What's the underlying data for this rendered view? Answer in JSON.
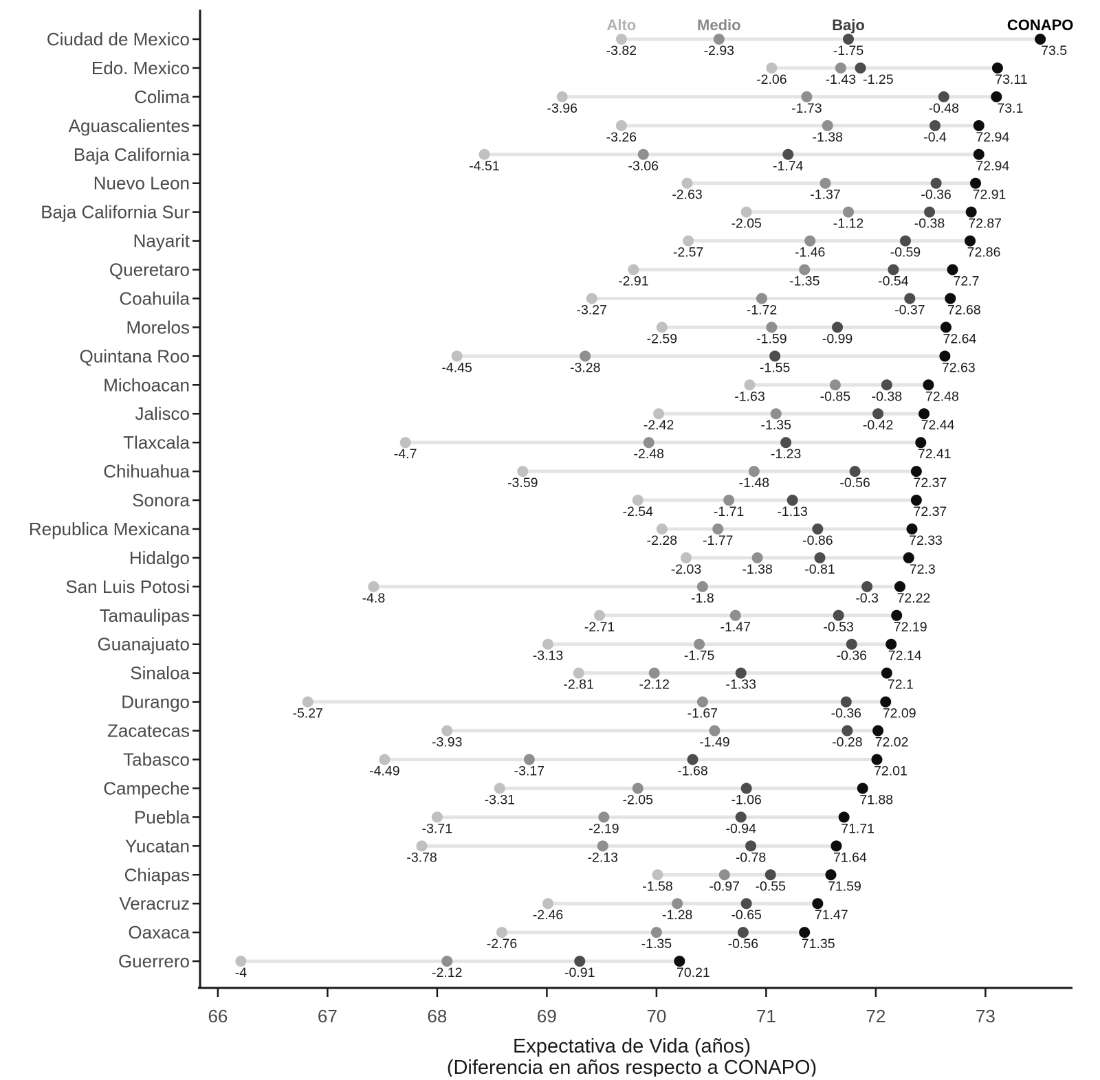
{
  "chart_data": {
    "type": "dumbbell",
    "xlabel_line1": "Expectativa de Vida (años)",
    "xlabel_line2": "(Diferencia en años respecto a CONAPO)",
    "x_ticks": [
      66,
      67,
      68,
      69,
      70,
      71,
      72,
      73
    ],
    "x_domain": [
      65.8,
      73.75
    ],
    "legend": [
      {
        "key": "alto",
        "label": "Alto",
        "dot_color": "#c0c0c0",
        "text_color": "#b3b3b3"
      },
      {
        "key": "medio",
        "label": "Medio",
        "dot_color": "#8f8f8f",
        "text_color": "#8a8a8a"
      },
      {
        "key": "bajo",
        "label": "Bajo",
        "dot_color": "#4d4d4d",
        "text_color": "#3d3d3d"
      },
      {
        "key": "conapo",
        "label": "CONAPO",
        "dot_color": "#0d0d0d",
        "text_color": "#000000"
      }
    ],
    "connector_color": "#e4e4e4",
    "axis_color": "#1a1a1a",
    "tick_text_color": "#4a4a4a",
    "state_text_color": "#4a4a4a",
    "value_text_color": "#1a1a1a",
    "rows": [
      {
        "state": "Ciudad de Mexico",
        "alto": -3.82,
        "medio": -2.93,
        "bajo": -1.75,
        "conapo": 73.5
      },
      {
        "state": "Edo. Mexico",
        "alto": -2.06,
        "medio": -1.43,
        "bajo": -1.25,
        "conapo": 73.11
      },
      {
        "state": "Colima",
        "alto": -3.96,
        "medio": -1.73,
        "bajo": -0.48,
        "conapo": 73.1
      },
      {
        "state": "Aguascalientes",
        "alto": -3.26,
        "medio": -1.38,
        "bajo": -0.4,
        "conapo": 72.94
      },
      {
        "state": "Baja California",
        "alto": -4.51,
        "medio": -3.06,
        "bajo": -1.74,
        "conapo": 72.94
      },
      {
        "state": "Nuevo Leon",
        "alto": -2.63,
        "medio": -1.37,
        "bajo": -0.36,
        "conapo": 72.91
      },
      {
        "state": "Baja California Sur",
        "alto": -2.05,
        "medio": -1.12,
        "bajo": -0.38,
        "conapo": 72.87
      },
      {
        "state": "Nayarit",
        "alto": -2.57,
        "medio": -1.46,
        "bajo": -0.59,
        "conapo": 72.86
      },
      {
        "state": "Queretaro",
        "alto": -2.91,
        "medio": -1.35,
        "bajo": -0.54,
        "conapo": 72.7
      },
      {
        "state": "Coahuila",
        "alto": -3.27,
        "medio": -1.72,
        "bajo": -0.37,
        "conapo": 72.68
      },
      {
        "state": "Morelos",
        "alto": -2.59,
        "medio": -1.59,
        "bajo": -0.99,
        "conapo": 72.64
      },
      {
        "state": "Quintana Roo",
        "alto": -4.45,
        "medio": -3.28,
        "bajo": -1.55,
        "conapo": 72.63
      },
      {
        "state": "Michoacan",
        "alto": -1.63,
        "medio": -0.85,
        "bajo": -0.38,
        "conapo": 72.48
      },
      {
        "state": "Jalisco",
        "alto": -2.42,
        "medio": -1.35,
        "bajo": -0.42,
        "conapo": 72.44
      },
      {
        "state": "Tlaxcala",
        "alto": -4.7,
        "medio": -2.48,
        "bajo": -1.23,
        "conapo": 72.41
      },
      {
        "state": "Chihuahua",
        "alto": -3.59,
        "medio": -1.48,
        "bajo": -0.56,
        "conapo": 72.37
      },
      {
        "state": "Sonora",
        "alto": -2.54,
        "medio": -1.71,
        "bajo": -1.13,
        "conapo": 72.37
      },
      {
        "state": "Republica Mexicana",
        "alto": -2.28,
        "medio": -1.77,
        "bajo": -0.86,
        "conapo": 72.33
      },
      {
        "state": "Hidalgo",
        "alto": -2.03,
        "medio": -1.38,
        "bajo": -0.81,
        "conapo": 72.3
      },
      {
        "state": "San Luis Potosi",
        "alto": -4.8,
        "medio": -1.8,
        "bajo": -0.3,
        "conapo": 72.22
      },
      {
        "state": "Tamaulipas",
        "alto": -2.71,
        "medio": -1.47,
        "bajo": -0.53,
        "conapo": 72.19
      },
      {
        "state": "Guanajuato",
        "alto": -3.13,
        "medio": -1.75,
        "bajo": -0.36,
        "conapo": 72.14
      },
      {
        "state": "Sinaloa",
        "alto": -2.81,
        "medio": -2.12,
        "bajo": -1.33,
        "conapo": 72.1
      },
      {
        "state": "Durango",
        "alto": -5.27,
        "medio": -1.67,
        "bajo": -0.36,
        "conapo": 72.09
      },
      {
        "state": "Zacatecas",
        "alto": -3.93,
        "medio": -1.49,
        "bajo": -0.28,
        "conapo": 72.02
      },
      {
        "state": "Tabasco",
        "alto": -4.49,
        "medio": -3.17,
        "bajo": -1.68,
        "conapo": 72.01
      },
      {
        "state": "Campeche",
        "alto": -3.31,
        "medio": -2.05,
        "bajo": -1.06,
        "conapo": 71.88
      },
      {
        "state": "Puebla",
        "alto": -3.71,
        "medio": -2.19,
        "bajo": -0.94,
        "conapo": 71.71
      },
      {
        "state": "Yucatan",
        "alto": -3.78,
        "medio": -2.13,
        "bajo": -0.78,
        "conapo": 71.64
      },
      {
        "state": "Chiapas",
        "alto": -1.58,
        "medio": -0.97,
        "bajo": -0.55,
        "conapo": 71.59
      },
      {
        "state": "Veracruz",
        "alto": -2.46,
        "medio": -1.28,
        "bajo": -0.65,
        "conapo": 71.47
      },
      {
        "state": "Oaxaca",
        "alto": -2.76,
        "medio": -1.35,
        "bajo": -0.56,
        "conapo": 71.35
      },
      {
        "state": "Guerrero",
        "alto": -4,
        "medio": -2.12,
        "bajo": -0.91,
        "conapo": 70.21
      }
    ]
  }
}
